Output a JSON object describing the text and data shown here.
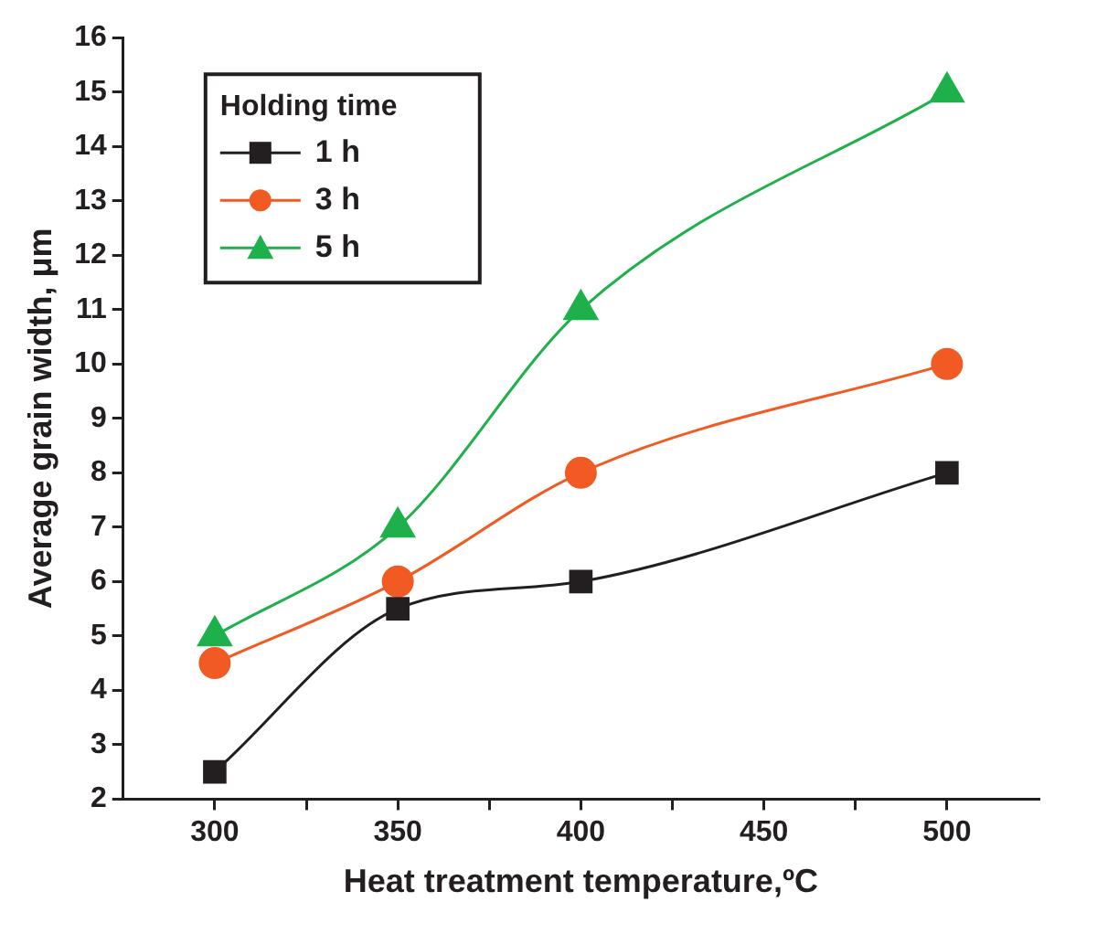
{
  "chart_data": {
    "type": "line",
    "xlabel": "Heat treatment temperature,ºC",
    "ylabel": "Average grain width, μm",
    "legend_title": "Holding time",
    "legend": "top left",
    "x": [
      300,
      350,
      400,
      500
    ],
    "series": [
      {
        "name": "1 h",
        "color": "#231f20",
        "marker": "square",
        "values": [
          2.5,
          5.5,
          6,
          8
        ]
      },
      {
        "name": "3 h",
        "color": "#f15a22",
        "marker": "circle",
        "values": [
          4.5,
          6,
          8,
          10
        ]
      },
      {
        "name": "5 h",
        "color": "#1db04b",
        "marker": "triangle",
        "values": [
          5,
          7,
          11,
          15
        ]
      }
    ],
    "xlim": [
      275,
      525
    ],
    "xticks": [
      300,
      {
        "value": 325,
        "label": null
      },
      350,
      {
        "value": 375,
        "label": null
      },
      400,
      {
        "value": 425,
        "label": null
      },
      450,
      {
        "value": 475,
        "label": null
      },
      500
    ],
    "ylim": [
      2,
      16
    ],
    "yticks": [
      2,
      3,
      4,
      5,
      6,
      7,
      8,
      9,
      10,
      11,
      12,
      13,
      14,
      15,
      16
    ],
    "grid": false
  }
}
